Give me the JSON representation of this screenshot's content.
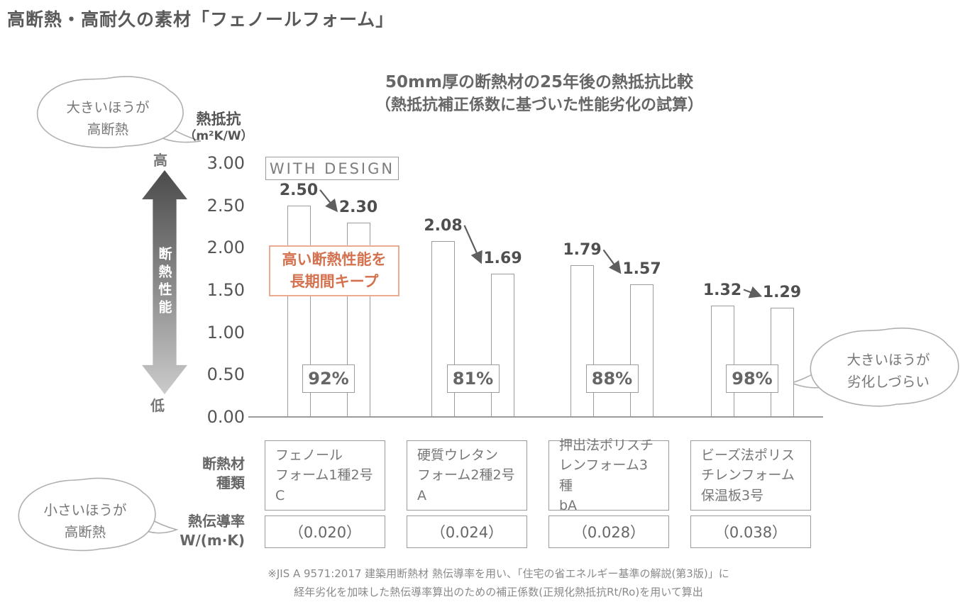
{
  "page": {
    "title": "高断熱・高耐久の素材「フェノールフォーム」"
  },
  "colors": {
    "accent_orange": "#d4714e",
    "bar_border": "#9b9b9b",
    "text_gray": "#666666"
  },
  "chart_data": {
    "type": "bar",
    "title": "50mm厚の断熱材の25年後の熱抵抗比較",
    "subtitle": "（熱抵抗補正係数に基づいた性能劣化の試算）",
    "badge": "WITH DESIGN",
    "ylabel_lines": [
      "熱抵抗",
      "（m²K/W）"
    ],
    "axis_high": "高",
    "axis_low": "低",
    "arrow_label": "断熱性能",
    "ylim": [
      0,
      3.0
    ],
    "yticks": [
      "3.00",
      "2.50",
      "2.00",
      "1.50",
      "1.00",
      "0.50",
      "0.00"
    ],
    "note_lines": [
      "高い断熱性能を",
      "長期間キープ"
    ],
    "groups": [
      {
        "material": "フェノールフォーム1種2号C",
        "material_lines": [
          "フェノール",
          "フォーム1種2号C"
        ],
        "initial": 2.5,
        "after_25_years": 2.3,
        "retention": "92%",
        "conductivity": "（0.020）"
      },
      {
        "material": "硬質ウレタンフォーム2種2号A",
        "material_lines": [
          "硬質ウレタン",
          "フォーム2種2号A"
        ],
        "initial": 2.08,
        "after_25_years": 1.69,
        "retention": "81%",
        "conductivity": "（0.024）"
      },
      {
        "material": "押出法ポリスチレンフォーム3種bA",
        "material_lines": [
          "押出法ポリスチ",
          "レンフォーム3種",
          "bA"
        ],
        "initial": 1.79,
        "after_25_years": 1.57,
        "retention": "88%",
        "conductivity": "（0.028）"
      },
      {
        "material": "ビーズ法ポリスチレンフォーム保温板3号",
        "material_lines": [
          "ビーズ法ポリス",
          "チレンフォーム",
          "保温板3号"
        ],
        "initial": 1.32,
        "after_25_years": 1.29,
        "retention": "98%",
        "conductivity": "（0.038）"
      }
    ]
  },
  "callouts": {
    "top_left": {
      "lines": [
        "大きいほうが",
        "高断熱"
      ]
    },
    "right": {
      "lines": [
        "大きいほうが",
        "劣化しづらい"
      ]
    },
    "bottom_left": {
      "lines": [
        "小さいほうが",
        "高断熱"
      ]
    }
  },
  "table": {
    "row_material_label_lines": [
      "断熱材",
      "種類"
    ],
    "row_conductivity_label_lines": [
      "熱伝導率",
      "W/(m·K)"
    ]
  },
  "footnote": {
    "lines": [
      "※JIS A 9571:2017 建築用断熱材 熱伝導率を用い、「住宅の省エネルギー基準の解説(第3版)」に",
      "経年劣化を加味した熱伝導率算出のための補正係数(正規化熱抵抗Rt/Ro)を用いて算出"
    ]
  }
}
